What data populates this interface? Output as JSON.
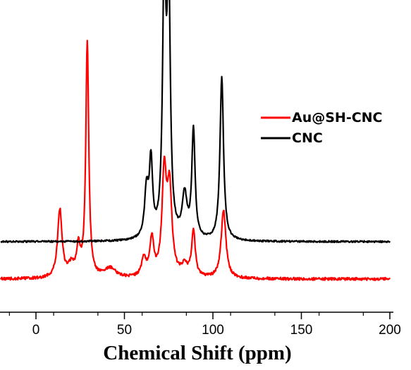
{
  "chart_data": {
    "type": "line",
    "title": "",
    "xlabel": "Chemical Shift (ppm)",
    "ylabel": "",
    "xlim": [
      -20,
      200
    ],
    "x_ticks": [
      0,
      50,
      100,
      150,
      200
    ],
    "x_tick_labels": [
      "0",
      "50",
      "100",
      "150",
      "200"
    ],
    "grid": false,
    "legend_position": "top-right",
    "series": [
      {
        "name": "Au@SH-CNC",
        "color": "#ff0000",
        "baseline": 0,
        "peaks": [
          {
            "center": 13.5,
            "height": 0.29,
            "width": 1.5
          },
          {
            "center": 20.0,
            "height": 0.05,
            "width": 2.0
          },
          {
            "center": 24.0,
            "height": 0.12,
            "width": 1.2
          },
          {
            "center": 29.0,
            "height": 1.0,
            "width": 1.0
          },
          {
            "center": 42.0,
            "height": 0.04,
            "width": 4.0
          },
          {
            "center": 61.0,
            "height": 0.08,
            "width": 1.5
          },
          {
            "center": 65.5,
            "height": 0.16,
            "width": 1.3
          },
          {
            "center": 72.5,
            "height": 0.43,
            "width": 1.5
          },
          {
            "center": 75.5,
            "height": 0.36,
            "width": 1.6
          },
          {
            "center": 84.0,
            "height": 0.05,
            "width": 2.0
          },
          {
            "center": 89.0,
            "height": 0.2,
            "width": 1.2
          },
          {
            "center": 106.0,
            "height": 0.29,
            "width": 1.6
          }
        ]
      },
      {
        "name": "CNC",
        "color": "#000000",
        "baseline": 0,
        "peaks": [
          {
            "center": 62.5,
            "height": 0.2,
            "width": 1.3
          },
          {
            "center": 65.0,
            "height": 0.31,
            "width": 1.1
          },
          {
            "center": 72.5,
            "height": 1.1,
            "width": 1.1
          },
          {
            "center": 75.0,
            "height": 1.05,
            "width": 1.1
          },
          {
            "center": 84.0,
            "height": 0.18,
            "width": 1.6
          },
          {
            "center": 89.0,
            "height": 0.46,
            "width": 1.1
          },
          {
            "center": 105.0,
            "height": 0.69,
            "width": 1.2
          }
        ]
      }
    ]
  }
}
